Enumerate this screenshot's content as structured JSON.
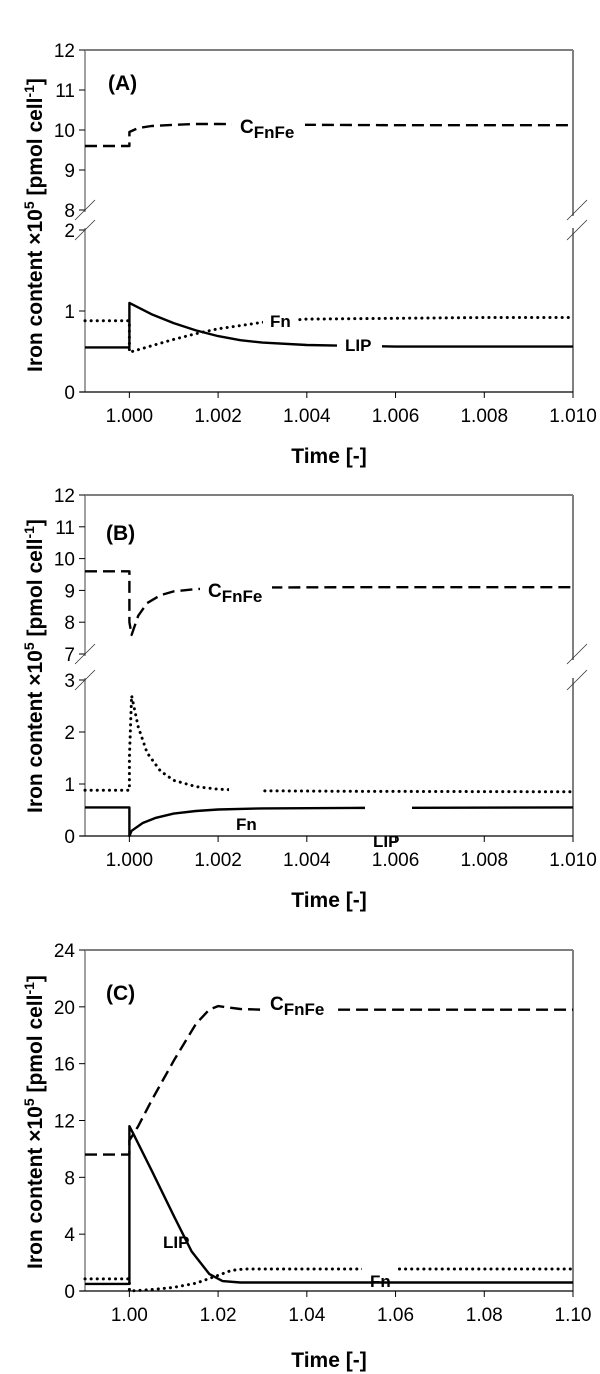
{
  "chart_data": [
    {
      "type": "line",
      "panel_label": "(A)",
      "xlabel": "Time [-]",
      "ylabel": "Iron content ×10^5 [pmol cell^-1]",
      "xlim": [
        0.999,
        1.01
      ],
      "x_ticks": [
        "1.000",
        "1.002",
        "1.004",
        "1.006",
        "1.008",
        "1.010"
      ],
      "broken_y_axis": true,
      "upper_ylim": [
        8,
        12
      ],
      "upper_y_ticks": [
        "8",
        "9",
        "10",
        "11",
        "12"
      ],
      "lower_ylim": [
        0,
        2
      ],
      "lower_y_ticks": [
        "0",
        "1",
        "2"
      ],
      "grid": false,
      "series": [
        {
          "name": "CFnFe",
          "label_main": "C",
          "label_sub": "FnFe",
          "style": "dashed",
          "axis": "upper",
          "x": [
            0.999,
            1.0,
            1.0,
            1.0002,
            1.0005,
            1.001,
            1.0015,
            1.002,
            1.003,
            1.004,
            1.006,
            1.008,
            1.01
          ],
          "y": [
            9.6,
            9.6,
            9.95,
            10.05,
            10.1,
            10.13,
            10.15,
            10.15,
            10.14,
            10.13,
            10.12,
            10.12,
            10.12
          ]
        },
        {
          "name": "Fn",
          "label_main": "Fn",
          "style": "dotted",
          "axis": "lower",
          "x": [
            0.999,
            1.0,
            1.0,
            1.0005,
            1.001,
            1.0015,
            1.002,
            1.0025,
            1.003,
            1.004,
            1.006,
            1.008,
            1.01
          ],
          "y": [
            0.88,
            0.88,
            0.49,
            0.57,
            0.65,
            0.72,
            0.78,
            0.82,
            0.86,
            0.9,
            0.91,
            0.92,
            0.92
          ]
        },
        {
          "name": "LIP",
          "label_main": "LIP",
          "style": "solid",
          "axis": "lower",
          "x": [
            0.999,
            1.0,
            1.0,
            1.0005,
            1.001,
            1.0015,
            1.002,
            1.0025,
            1.003,
            1.004,
            1.006,
            1.008,
            1.01
          ],
          "y": [
            0.55,
            0.55,
            1.1,
            0.96,
            0.85,
            0.76,
            0.69,
            0.64,
            0.61,
            0.58,
            0.56,
            0.56,
            0.56
          ]
        }
      ]
    },
    {
      "type": "line",
      "panel_label": "(B)",
      "xlabel": "Time [-]",
      "ylabel": "Iron content ×10^5 [pmol cell^-1]",
      "xlim": [
        0.999,
        1.01
      ],
      "x_ticks": [
        "1.000",
        "1.002",
        "1.004",
        "1.006",
        "1.008",
        "1.010"
      ],
      "broken_y_axis": true,
      "upper_ylim": [
        7,
        12
      ],
      "upper_y_ticks": [
        "7",
        "8",
        "9",
        "10",
        "11",
        "12"
      ],
      "lower_ylim": [
        0,
        3
      ],
      "lower_y_ticks": [
        "0",
        "1",
        "2",
        "3"
      ],
      "grid": false,
      "series": [
        {
          "name": "CFnFe",
          "label_main": "C",
          "label_sub": "FnFe",
          "style": "dashed",
          "axis": "upper",
          "x": [
            0.999,
            1.0,
            1.0,
            1.00005,
            1.0002,
            1.0004,
            1.0007,
            1.001,
            1.0015,
            1.002,
            1.003,
            1.005,
            1.01
          ],
          "y": [
            9.6,
            9.6,
            8.0,
            7.6,
            8.2,
            8.6,
            8.85,
            8.97,
            9.04,
            9.07,
            9.09,
            9.1,
            9.1
          ]
        },
        {
          "name": "Fn",
          "label_main": "Fn",
          "style": "dotted",
          "axis": "lower",
          "x": [
            0.999,
            1.0,
            1.0,
            1.00005,
            1.0002,
            1.0004,
            1.0007,
            1.001,
            1.0015,
            1.002,
            1.003,
            1.005,
            1.01
          ],
          "y": [
            0.88,
            0.88,
            1.5,
            2.7,
            2.1,
            1.6,
            1.25,
            1.07,
            0.95,
            0.9,
            0.87,
            0.86,
            0.85
          ]
        },
        {
          "name": "LIP",
          "label_main": "LIP",
          "style": "solid",
          "axis": "lower",
          "x": [
            0.999,
            1.0,
            1.0,
            1.00005,
            1.0003,
            1.0006,
            1.001,
            1.0015,
            1.002,
            1.003,
            1.005,
            1.01
          ],
          "y": [
            0.55,
            0.55,
            0.0,
            0.1,
            0.25,
            0.35,
            0.43,
            0.48,
            0.51,
            0.53,
            0.54,
            0.55
          ]
        }
      ]
    },
    {
      "type": "line",
      "panel_label": "(C)",
      "xlabel": "Time [-]",
      "ylabel": "Iron content ×10^5 [pmol cell^-1]",
      "xlim": [
        0.99,
        1.1
      ],
      "x_ticks": [
        "1.00",
        "1.02",
        "1.04",
        "1.06",
        "1.08",
        "1.10"
      ],
      "broken_y_axis": false,
      "ylim": [
        0,
        24
      ],
      "y_ticks": [
        "0",
        "4",
        "8",
        "12",
        "16",
        "20",
        "24"
      ],
      "grid": false,
      "series": [
        {
          "name": "CFnFe",
          "label_main": "C",
          "label_sub": "FnFe",
          "style": "dashed",
          "x": [
            0.99,
            1.0,
            1.0,
            1.002,
            1.005,
            1.01,
            1.015,
            1.018,
            1.02,
            1.025,
            1.03,
            1.05,
            1.1
          ],
          "y": [
            9.6,
            9.6,
            10.6,
            11.6,
            13.4,
            16.2,
            18.8,
            19.8,
            20.05,
            19.85,
            19.8,
            19.8,
            19.8
          ]
        },
        {
          "name": "LIP",
          "label_main": "LIP",
          "style": "solid",
          "x": [
            0.99,
            1.0,
            1.0,
            1.001,
            1.005,
            1.01,
            1.014,
            1.018,
            1.021,
            1.025,
            1.03,
            1.05,
            1.1
          ],
          "y": [
            0.5,
            0.5,
            11.6,
            11.0,
            8.5,
            5.3,
            2.8,
            1.2,
            0.7,
            0.6,
            0.6,
            0.6,
            0.6
          ]
        },
        {
          "name": "Fn",
          "label_main": "Fn",
          "style": "dotted",
          "x": [
            0.99,
            1.0,
            1.0,
            1.005,
            1.01,
            1.015,
            1.02,
            1.023,
            1.026,
            1.03,
            1.05,
            1.1
          ],
          "y": [
            0.85,
            0.85,
            0.0,
            0.1,
            0.25,
            0.55,
            1.1,
            1.45,
            1.55,
            1.55,
            1.55,
            1.55
          ]
        }
      ]
    }
  ]
}
